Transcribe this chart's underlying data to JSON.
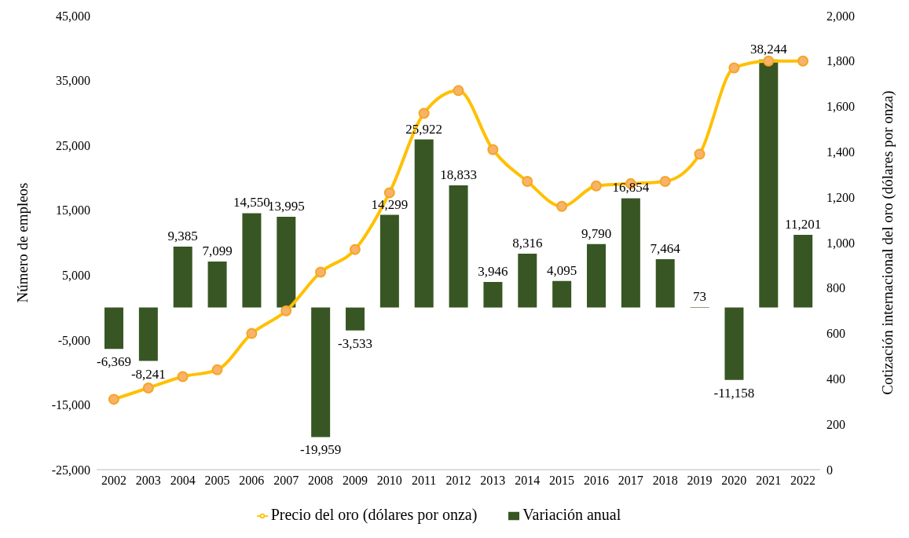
{
  "chart_data": {
    "type": "bar",
    "categories": [
      "2002",
      "2003",
      "2004",
      "2005",
      "2006",
      "2007",
      "2008",
      "2009",
      "2010",
      "2011",
      "2012",
      "2013",
      "2014",
      "2015",
      "2016",
      "2017",
      "2018",
      "2019",
      "2020",
      "2021",
      "2022"
    ],
    "series": [
      {
        "name": "Variación anual",
        "color": "#375623",
        "values": [
          -6369,
          -8241,
          9385,
          7099,
          14550,
          13995,
          -19959,
          -3533,
          14299,
          25922,
          18833,
          3946,
          8316,
          4095,
          9790,
          16854,
          7464,
          73,
          -11158,
          38244,
          11201
        ],
        "value_labels": [
          "-6,369",
          "-8,241",
          "9,385",
          "7,099",
          "14,550",
          "13,995",
          "-19,959",
          "-3,533",
          "14,299",
          "25,922",
          "18,833",
          "3,946",
          "8,316",
          "4,095",
          "9,790",
          "16,854",
          "7,464",
          "73",
          "-11,158",
          "38,244",
          "11,201"
        ]
      },
      {
        "name": "Precio del oro (dólares por onza)",
        "type": "line",
        "axis": "y2",
        "color": "#ffc000",
        "values": [
          310,
          360,
          410,
          440,
          600,
          700,
          870,
          970,
          1220,
          1570,
          1670,
          1410,
          1270,
          1160,
          1250,
          1260,
          1270,
          1390,
          1770,
          1800,
          1800
        ]
      }
    ],
    "ylabel": "Número de empleos",
    "y2label": "Cotización internacional del oro (dólares por onza)",
    "ylim": [
      -25000,
      45000
    ],
    "yticks": [
      {
        "value": -25000,
        "label": "-25,000"
      },
      {
        "value": -15000,
        "label": "-15,000"
      },
      {
        "value": -5000,
        "label": "-5,000"
      },
      {
        "value": 5000,
        "label": "5,000"
      },
      {
        "value": 15000,
        "label": "15,000"
      },
      {
        "value": 25000,
        "label": "25,000"
      },
      {
        "value": 35000,
        "label": "35,000"
      },
      {
        "value": 45000,
        "label": "45,000"
      }
    ],
    "y2lim": [
      0,
      2000
    ],
    "y2ticks": [
      0,
      200,
      400,
      600,
      800,
      {
        "value": 1000,
        "label": "1,000"
      },
      {
        "value": 1200,
        "label": "1,200"
      },
      {
        "value": 1400,
        "label": "1,400"
      },
      {
        "value": 1600,
        "label": "1,600"
      },
      {
        "value": 1800,
        "label": "1,800"
      },
      {
        "value": 2000,
        "label": "2,000"
      }
    ],
    "grid": false,
    "legend": "bottom",
    "marker": "circle",
    "line_style": "solid"
  }
}
